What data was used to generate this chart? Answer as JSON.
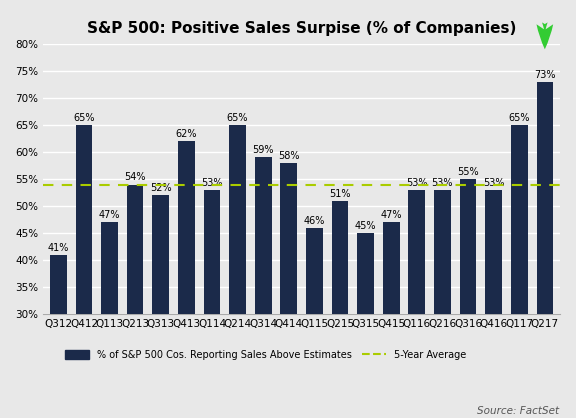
{
  "title": "S&P 500: Positive Sales Surpise (% of Companies)",
  "categories": [
    "Q312",
    "Q412",
    "Q113",
    "Q213",
    "Q313",
    "Q413",
    "Q114",
    "Q214",
    "Q314",
    "Q414",
    "Q115",
    "Q215",
    "Q315",
    "Q415",
    "Q116",
    "Q216",
    "Q316",
    "Q416",
    "Q117",
    "Q217"
  ],
  "values": [
    41,
    65,
    47,
    54,
    52,
    62,
    53,
    65,
    59,
    58,
    46,
    51,
    45,
    47,
    53,
    53,
    55,
    53,
    65,
    73
  ],
  "bar_color": "#1b2a4a",
  "five_year_avg": 54,
  "five_year_avg_color": "#aacc00",
  "arrow_color": "#33cc33",
  "ylim_min": 30,
  "ylim_max": 80,
  "yticks": [
    30,
    35,
    40,
    45,
    50,
    55,
    60,
    65,
    70,
    75,
    80
  ],
  "legend_bar_label": "% of S&P 500 Cos. Reporting Sales Above Estimates",
  "legend_avg_label": "5-Year Average",
  "source_text": "Source: FactSet",
  "background_color": "#e8e8e8",
  "plot_bg_color": "#e8e8e8",
  "grid_color": "#ffffff",
  "label_fontsize": 7.0,
  "title_fontsize": 11,
  "tick_fontsize": 7.5
}
